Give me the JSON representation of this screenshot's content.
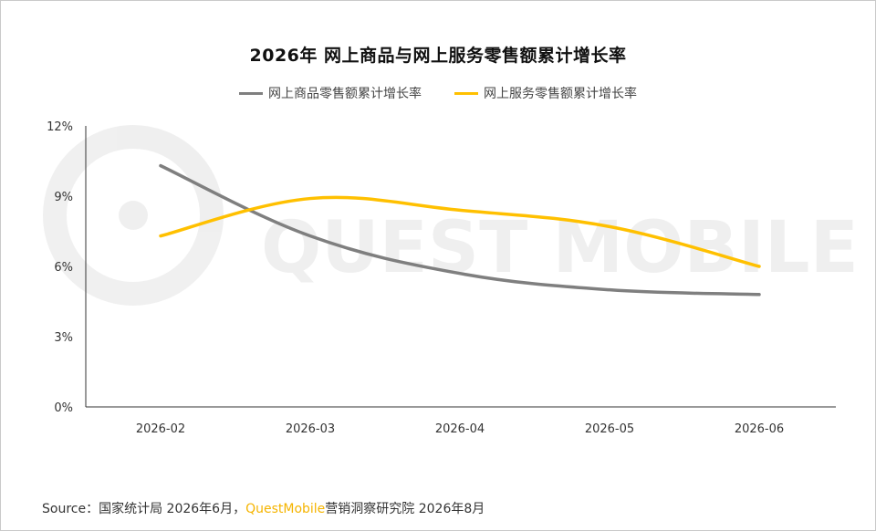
{
  "chart_data": {
    "type": "line",
    "title": "2026年 网上商品与网上服务零售额累计增长率",
    "categories": [
      "2026-02",
      "2026-03",
      "2026-04",
      "2026-05",
      "2026-06"
    ],
    "series": [
      {
        "name": "网上商品零售额累计增长率",
        "color": "#7f7f7f",
        "values": [
          10.3,
          7.3,
          5.7,
          5.0,
          4.8
        ]
      },
      {
        "name": "网上服务零售额累计增长率",
        "color": "#ffc000",
        "values": [
          7.3,
          8.9,
          8.4,
          7.7,
          6.0
        ]
      }
    ],
    "yticks": [
      "0%",
      "3%",
      "6%",
      "9%",
      "12%"
    ],
    "ylim": [
      0,
      12
    ],
    "grid": false,
    "legend_position": "top",
    "smooth": true
  },
  "watermark": "QUEST MOBILE",
  "source": {
    "prefix": "Source：国家统计局 2026年6月，",
    "brand": "QuestMobile",
    "suffix": "营销洞察研究院 2026年8月"
  }
}
